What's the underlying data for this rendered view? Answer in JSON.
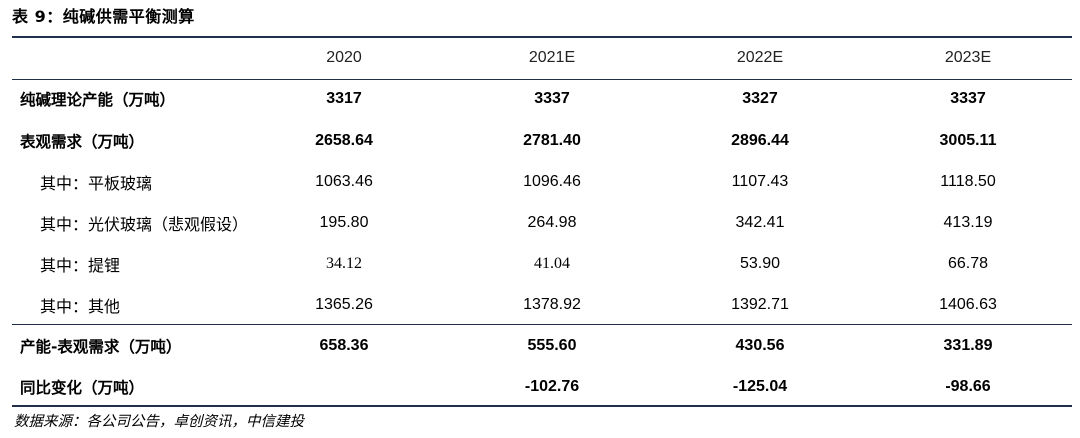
{
  "caption": "表 9：纯碱供需平衡测算",
  "table": {
    "columns": [
      "",
      "2020",
      "2021E",
      "2022E",
      "2023E"
    ],
    "rows": [
      {
        "label": "纯碱理论产能（万吨）",
        "values": [
          "3317",
          "3337",
          "3327",
          "3337"
        ]
      },
      {
        "label": "表观需求（万吨）",
        "values": [
          "2658.64",
          "2781.40",
          "2896.44",
          "3005.11"
        ]
      },
      {
        "label": "其中：平板玻璃",
        "values": [
          "1063.46",
          "1096.46",
          "1107.43",
          "1118.50"
        ]
      },
      {
        "label": "其中：光伏玻璃（悲观假设）",
        "values": [
          "195.80",
          "264.98",
          "342.41",
          "413.19"
        ]
      },
      {
        "label": "其中：提锂",
        "values": [
          "34.12",
          "41.04",
          "53.90",
          "66.78"
        ]
      },
      {
        "label": "其中：其他",
        "values": [
          "1365.26",
          "1378.92",
          "1392.71",
          "1406.63"
        ]
      },
      {
        "label": "产能-表观需求（万吨）",
        "values": [
          "658.36",
          "555.60",
          "430.56",
          "331.89"
        ]
      },
      {
        "label": "同比变化（万吨）",
        "values": [
          "",
          "-102.76",
          "-125.04",
          "-98.66"
        ]
      }
    ]
  },
  "source": "数据来源：各公司公告，卓创资讯，中信建投"
}
